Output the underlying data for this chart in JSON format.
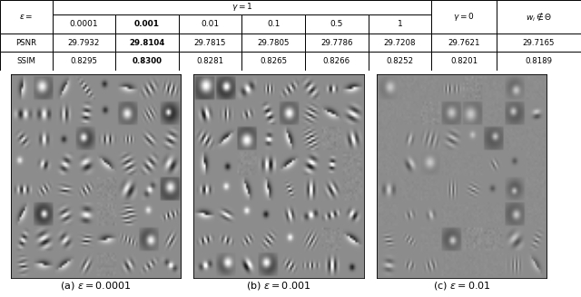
{
  "table_header_row0_label": "$\\epsilon=$",
  "table_gamma1_label": "$\\gamma=1$",
  "table_gamma0_label": "$\\gamma=0$",
  "table_wi_label": "$w_i\\notin\\Theta$",
  "table_eps_vals": [
    "0.0001",
    "0.001",
    "0.01",
    "0.1",
    "0.5",
    "1"
  ],
  "table_row_psnr": [
    "PSNR",
    "29.7932",
    "29.8104",
    "29.7815",
    "29.7805",
    "29.7786",
    "29.7208",
    "29.7621",
    "29.7165"
  ],
  "table_row_ssim": [
    "SSIM",
    "0.8295",
    "0.8300",
    "0.8281",
    "0.8265",
    "0.8266",
    "0.8252",
    "0.8201",
    "0.8189"
  ],
  "bold_col_index": 2,
  "caption_a": "(a) $\\epsilon = 0.0001$",
  "caption_b": "(b) $\\epsilon = 0.001$",
  "caption_c": "(c) $\\epsilon = 0.01$",
  "bg_color": "#ffffff",
  "n_filters_row": 8,
  "n_filters_col": 8,
  "filter_size": 11,
  "grid_bg": 0.55,
  "table_fontsize": 6.5,
  "caption_fontsize": 8,
  "img_gray_bg": 0.55
}
